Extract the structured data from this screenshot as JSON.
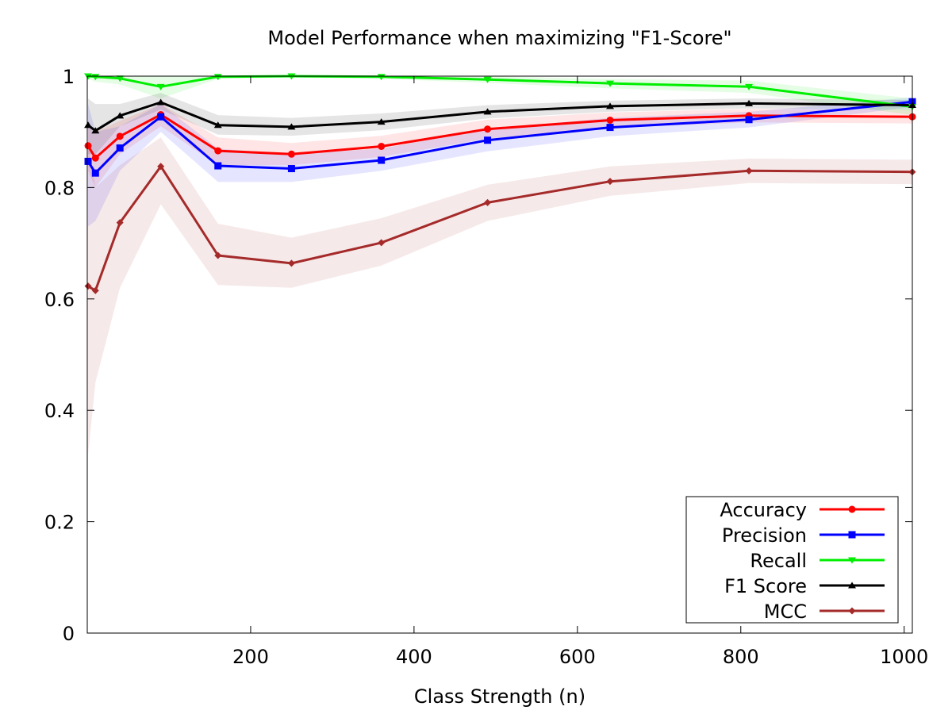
{
  "chart_data": {
    "type": "line",
    "title": "Model Performance when maximizing \"F1-Score\"",
    "xlabel": "Class Strength (n)",
    "ylabel": "",
    "xlim": [
      0,
      1010
    ],
    "ylim": [
      0,
      1
    ],
    "x_ticks": [
      200,
      400,
      600,
      800,
      1000
    ],
    "x_tick_labels": [
      "200",
      "400",
      "600",
      "800",
      "1000"
    ],
    "y_ticks": [
      0,
      0.2,
      0.4,
      0.6,
      0.8,
      1
    ],
    "y_tick_labels": [
      "0",
      "0.2",
      "0.4",
      "0.6",
      "0.8",
      "1"
    ],
    "legend_position": "bottom-right",
    "x": [
      1,
      10,
      40,
      90,
      160,
      250,
      360,
      490,
      640,
      810,
      1010
    ],
    "series": [
      {
        "name": "Accuracy",
        "color": "#ff0000",
        "band_color": "#ff0000",
        "marker": "circle",
        "values": [
          0.875,
          0.853,
          0.892,
          0.931,
          0.866,
          0.86,
          0.874,
          0.905,
          0.921,
          0.929,
          0.927
        ],
        "lower": [
          0.83,
          0.8,
          0.86,
          0.91,
          0.84,
          0.84,
          0.855,
          0.888,
          0.907,
          0.917,
          0.915
        ],
        "upper": [
          0.92,
          0.9,
          0.92,
          0.95,
          0.89,
          0.88,
          0.893,
          0.922,
          0.935,
          0.941,
          0.939
        ]
      },
      {
        "name": "Precision",
        "color": "#0000ff",
        "band_color": "#0000ff",
        "marker": "square",
        "values": [
          0.847,
          0.826,
          0.871,
          0.927,
          0.839,
          0.834,
          0.849,
          0.885,
          0.908,
          0.922,
          0.954
        ],
        "lower": [
          0.73,
          0.74,
          0.83,
          0.9,
          0.81,
          0.81,
          0.83,
          0.865,
          0.892,
          0.908,
          0.945
        ],
        "upper": [
          0.95,
          0.9,
          0.91,
          0.95,
          0.87,
          0.86,
          0.87,
          0.905,
          0.925,
          0.936,
          0.962
        ]
      },
      {
        "name": "Recall",
        "color": "#00ee00",
        "band_color": "#00ee00",
        "marker": "triangle-down",
        "values": [
          1.0,
          0.999,
          0.996,
          0.981,
          0.999,
          1.0,
          0.999,
          0.994,
          0.987,
          0.981,
          0.945
        ],
        "lower": [
          0.995,
          0.99,
          0.985,
          0.96,
          0.995,
          0.998,
          0.995,
          0.988,
          0.978,
          0.97,
          0.93
        ],
        "upper": [
          1.0,
          1.0,
          1.0,
          1.0,
          1.0,
          1.0,
          1.0,
          1.0,
          0.995,
          0.992,
          0.96
        ]
      },
      {
        "name": "F1 Score",
        "color": "#000000",
        "band_color": "#000000",
        "marker": "triangle-up",
        "values": [
          0.912,
          0.902,
          0.929,
          0.953,
          0.912,
          0.909,
          0.918,
          0.936,
          0.946,
          0.951,
          0.948
        ],
        "lower": [
          0.86,
          0.86,
          0.91,
          0.94,
          0.895,
          0.893,
          0.903,
          0.924,
          0.936,
          0.942,
          0.939
        ],
        "upper": [
          0.96,
          0.95,
          0.95,
          0.97,
          0.93,
          0.925,
          0.933,
          0.948,
          0.956,
          0.96,
          0.957
        ]
      },
      {
        "name": "MCC",
        "color": "#a52a2a",
        "band_color": "#a52a2a",
        "marker": "diamond",
        "values": [
          0.623,
          0.615,
          0.737,
          0.838,
          0.678,
          0.664,
          0.701,
          0.773,
          0.811,
          0.83,
          0.828
        ],
        "lower": [
          0.32,
          0.45,
          0.62,
          0.77,
          0.625,
          0.62,
          0.66,
          0.74,
          0.785,
          0.808,
          0.806
        ],
        "upper": [
          0.88,
          0.8,
          0.84,
          0.89,
          0.735,
          0.71,
          0.745,
          0.805,
          0.838,
          0.852,
          0.85
        ]
      }
    ]
  }
}
